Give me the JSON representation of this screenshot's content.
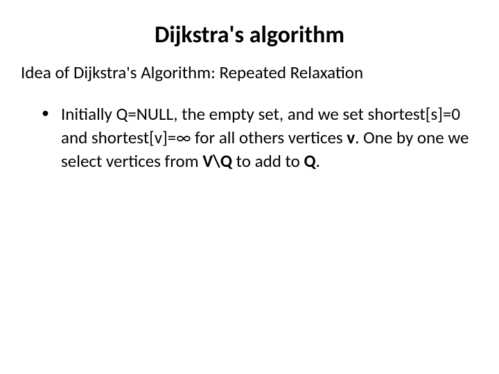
{
  "slide": {
    "title": "Dijkstra's algorithm",
    "subtitle": "Idea of Dijkstra's Algorithm: Repeated Relaxation",
    "bullet": {
      "part1": "Initially Q=NULL, the empty set, and we set shortest[s]=0 and shortest[v]=∞   for all others vertices ",
      "bold1": "v",
      "part2": ". One by one we select vertices from ",
      "bold2": "V\\Q",
      "part3": " to add to ",
      "bold3": "Q",
      "part4": "."
    }
  },
  "styling": {
    "background_color": "#ffffff",
    "text_color": "#000000",
    "title_fontsize": 34,
    "subtitle_fontsize": 25,
    "body_fontsize": 25,
    "font_family": "Calibri"
  }
}
